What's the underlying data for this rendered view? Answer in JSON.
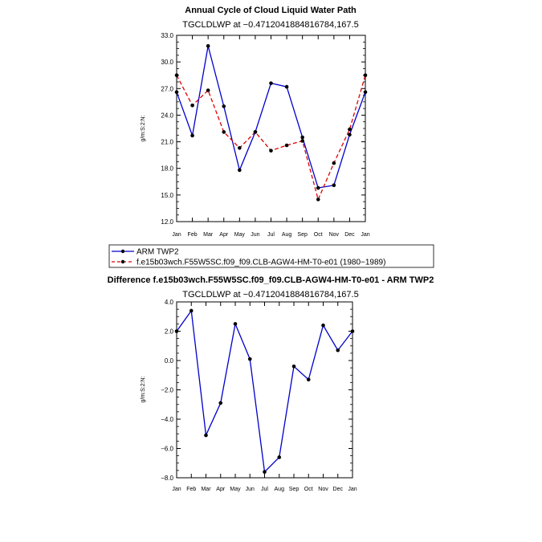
{
  "chart_data": [
    {
      "type": "line",
      "title": "Annual Cycle of Cloud Liquid Water Path",
      "subtitle": "TGCLDLWP  at  −0.4712041884816784,167.5",
      "ylabel": "g/m:S:2:N:",
      "categories": [
        "Jan",
        "Feb",
        "Mar",
        "Apr",
        "May",
        "Jun",
        "Jul",
        "Aug",
        "Sep",
        "Oct",
        "Nov",
        "Dec",
        "Jan"
      ],
      "ylim": [
        12.0,
        33.0
      ],
      "yticks": [
        "12.0",
        "15.0",
        "18.0",
        "21.0",
        "24.0",
        "27.0",
        "30.0",
        "33.0"
      ],
      "series": [
        {
          "name": "ARM TWP2",
          "color": "#0000cc",
          "dash": "solid",
          "values": [
            26.6,
            21.7,
            31.8,
            25.0,
            17.8,
            22.1,
            27.6,
            27.2,
            21.5,
            15.8,
            16.1,
            21.8,
            26.6
          ]
        },
        {
          "name": "f.e15b03wch.F55W5SC.f09_f09.CLB-AGW4-HM-T0-e01 (1980−1989)",
          "color": "#e00000",
          "dash": "dashed",
          "values": [
            28.5,
            25.1,
            26.8,
            22.1,
            20.3,
            22.1,
            20.0,
            20.6,
            21.1,
            14.5,
            18.6,
            22.4,
            28.5
          ]
        }
      ],
      "legend_position": "bottom-left"
    },
    {
      "type": "line",
      "title": "Difference f.e15b03wch.F55W5SC.f09_f09.CLB-AGW4-HM-T0-e01 - ARM TWP2",
      "subtitle": "TGCLDLWP  at  −0.4712041884816784,167.5",
      "ylabel": "g/m:S:2:N:",
      "categories": [
        "Jan",
        "Feb",
        "Mar",
        "Apr",
        "May",
        "Jun",
        "Jul",
        "Aug",
        "Sep",
        "Oct",
        "Nov",
        "Dec",
        "Jan"
      ],
      "ylim": [
        -8.0,
        4.0
      ],
      "yticks": [
        "−8.0",
        "−6.0",
        "−4.0",
        "−2.0",
        "0.0",
        "2.0",
        "4.0"
      ],
      "series": [
        {
          "name": "Difference",
          "color": "#0000cc",
          "dash": "solid",
          "values": [
            2.0,
            3.4,
            -5.1,
            -2.9,
            2.5,
            0.1,
            -7.6,
            -6.6,
            -0.4,
            -1.3,
            2.4,
            0.7,
            2.0
          ]
        }
      ]
    }
  ]
}
